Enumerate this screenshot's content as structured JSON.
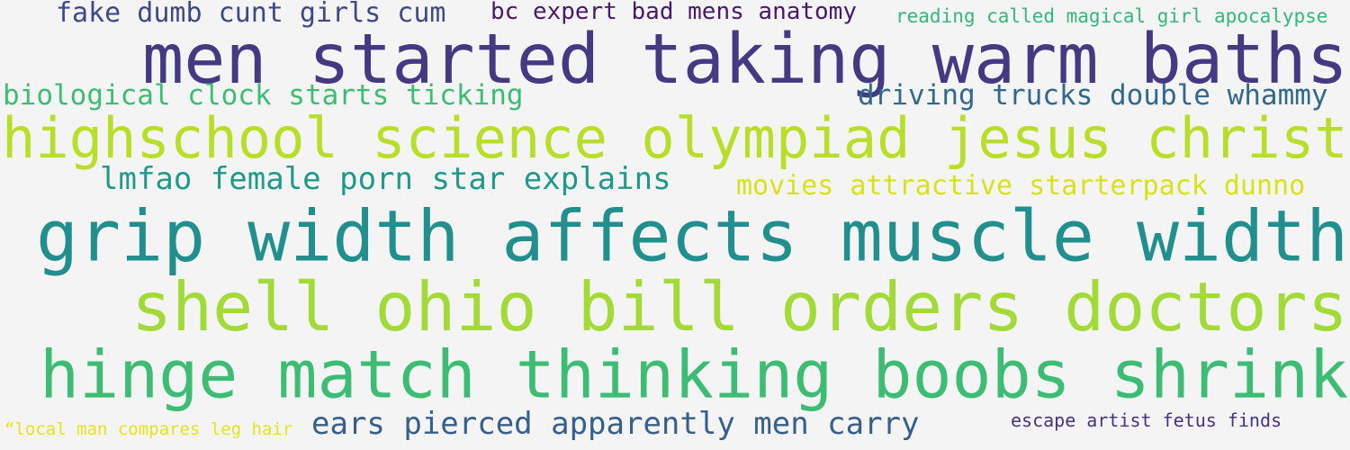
{
  "word_cloud": {
    "background": "#f4f4f4",
    "words": [
      {
        "text": "men started taking warm baths",
        "color": "#443983"
      },
      {
        "text": "highschool science olympiad jesus christ",
        "color": "#b8de29"
      },
      {
        "text": "grip width affects muscle width",
        "color": "#218f8d"
      },
      {
        "text": "shell ohio bill orders doctors",
        "color": "#a2da37"
      },
      {
        "text": "hinge match thinking boobs shrink",
        "color": "#3dbc74"
      },
      {
        "text": "fake dumb cunt girls cum",
        "color": "#3e4989"
      },
      {
        "text": "bc expert bad mens anatomy",
        "color": "#48186a"
      },
      {
        "text": "reading called magical girl apocalypse",
        "color": "#35b779"
      },
      {
        "text": "biological clock starts ticking",
        "color": "#3dbc74"
      },
      {
        "text": "driving trucks double whammy",
        "color": "#31688e"
      },
      {
        "text": "lmfao female porn star explains",
        "color": "#1f9a8a"
      },
      {
        "text": "movies attractive starterpack dunno",
        "color": "#d8e219"
      },
      {
        "text": "ears pierced apparently men carry",
        "color": "#355f8d"
      },
      {
        "text": "escape artist fetus finds",
        "color": "#46337e"
      },
      {
        "text": "“local man compares leg hair",
        "color": "#e5e419"
      }
    ]
  }
}
